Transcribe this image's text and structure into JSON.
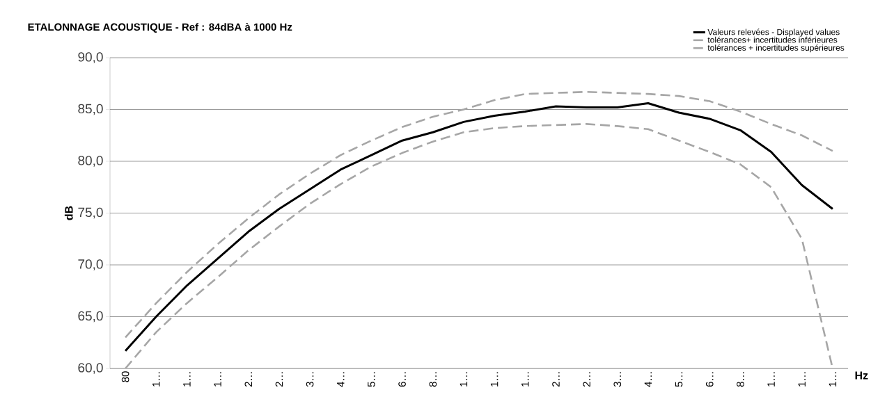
{
  "chart_data": {
    "type": "line",
    "title": "ETALONNAGE  ACOUSTIQUE - Ref : 84dBA à 1000 Hz",
    "xlabel": "Hz",
    "ylabel": "dB",
    "categories": [
      "80",
      "1…",
      "1…",
      "1…",
      "2…",
      "2…",
      "3…",
      "4…",
      "5…",
      "6…",
      "8…",
      "1…",
      "1…",
      "1…",
      "2…",
      "2…",
      "3…",
      "4…",
      "5…",
      "6…",
      "8…",
      "1…",
      "1…",
      "1…"
    ],
    "series": [
      {
        "name": "Valeurs relevées - Displayed values",
        "color": "#000000",
        "line_style": "solid",
        "values": [
          61.7,
          65.0,
          68.0,
          70.6,
          73.2,
          75.4,
          77.3,
          79.2,
          80.6,
          82.0,
          82.8,
          83.8,
          84.4,
          84.8,
          85.3,
          85.2,
          85.2,
          85.6,
          84.7,
          84.1,
          83.0,
          80.9,
          77.7,
          75.4
        ]
      },
      {
        "name": "tolérances+ incertitudes inférieures",
        "color": "#a6a6a6",
        "line_style": "dashed",
        "values": [
          60.0,
          63.5,
          66.3,
          68.8,
          71.4,
          73.7,
          75.9,
          77.8,
          79.5,
          80.8,
          81.9,
          82.8,
          83.2,
          83.4,
          83.5,
          83.6,
          83.4,
          83.1,
          82.0,
          80.9,
          79.7,
          77.5,
          72.5,
          60.0
        ]
      },
      {
        "name": "tolérances + incertitudes supérieures",
        "color": "#a6a6a6",
        "line_style": "dashed",
        "values": [
          63.0,
          66.3,
          69.3,
          72.0,
          74.5,
          76.8,
          78.8,
          80.6,
          82.0,
          83.3,
          84.3,
          85.0,
          85.9,
          86.5,
          86.6,
          86.7,
          86.6,
          86.5,
          86.3,
          85.8,
          84.8,
          83.6,
          82.5,
          81.0
        ]
      }
    ],
    "ylim": [
      60,
      90
    ],
    "yticks": [
      {
        "value": 60,
        "label": "60,0"
      },
      {
        "value": 65,
        "label": "65,0"
      },
      {
        "value": 70,
        "label": "70,0"
      },
      {
        "value": 75,
        "label": "75,0"
      },
      {
        "value": 80,
        "label": "80,0"
      },
      {
        "value": 85,
        "label": "85,0"
      },
      {
        "value": 90,
        "label": "90,0"
      }
    ],
    "grid": "y",
    "legend": "top right",
    "marker": "none"
  }
}
